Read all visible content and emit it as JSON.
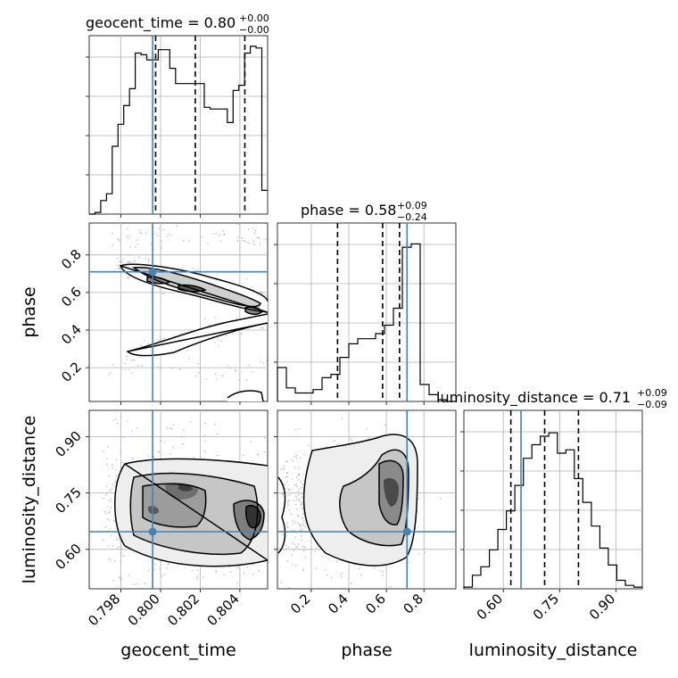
{
  "chart_data": {
    "type": "corner",
    "parameters": [
      {
        "name": "geocent_time",
        "label": "geocent_time",
        "range": [
          0.7964,
          0.8054
        ],
        "title_name": "geocent_time",
        "title_value": "0.80",
        "title_plus": "+0.00",
        "title_minus": "−0.00"
      },
      {
        "name": "phase",
        "label": "phase",
        "range": [
          0.02,
          0.97
        ],
        "title_name": "phase",
        "title_value": "0.58",
        "title_plus": "+0.09",
        "title_minus": "−0.24"
      },
      {
        "name": "luminosity_distance",
        "label": "luminosity_distance",
        "range": [
          0.495,
          0.97
        ],
        "title_name": "luminosity_distance",
        "title_value": "0.71",
        "title_plus": "+0.09",
        "title_minus": "−0.09"
      }
    ],
    "truths": [
      0.7996,
      0.71,
      0.647
    ],
    "tick_labels": {
      "geocent_time": [
        {
          "v": 0.798,
          "t": "0.798"
        },
        {
          "v": 0.8,
          "t": "0.800"
        },
        {
          "v": 0.802,
          "t": "0.802"
        },
        {
          "v": 0.804,
          "t": "0.804"
        }
      ],
      "phase": [
        {
          "v": 0.2,
          "t": "0.2"
        },
        {
          "v": 0.4,
          "t": "0.4"
        },
        {
          "v": 0.6,
          "t": "0.6"
        },
        {
          "v": 0.8,
          "t": "0.8"
        }
      ],
      "luminosity_distance": [
        {
          "v": 0.6,
          "t": "0.60"
        },
        {
          "v": 0.75,
          "t": "0.75"
        },
        {
          "v": 0.9,
          "t": "0.90"
        }
      ]
    },
    "histograms": [
      {
        "param": "geocent_time",
        "density": [
          0,
          0.01,
          0.08,
          0.12,
          0.4,
          0.53,
          0.64,
          0.74,
          0.95,
          0.94,
          0.91,
          0.91,
          0.97,
          0.97,
          0.86,
          0.77,
          0.77,
          0.77,
          0.77,
          0.77,
          0.63,
          0.62,
          0.62,
          0.62,
          0.54,
          0.73,
          0.76,
          0.95,
          0.99,
          0.98,
          0.14
        ],
        "quantiles": [
          0.79975,
          0.80175,
          0.80425
        ]
      },
      {
        "param": "phase",
        "density": [
          0.2,
          0.08,
          0.05,
          0.05,
          0.07,
          0.14,
          0.16,
          0.26,
          0.34,
          0.37,
          0.37,
          0.4,
          0.45,
          0.55,
          0.91,
          0.93,
          0.1,
          0.04,
          0.01,
          0.0
        ],
        "quantiles": [
          0.34,
          0.58,
          0.67
        ]
      },
      {
        "param": "luminosity_distance",
        "density": [
          0.01,
          0.08,
          0.13,
          0.23,
          0.35,
          0.46,
          0.61,
          0.77,
          0.85,
          0.9,
          0.92,
          0.8,
          0.82,
          0.65,
          0.51,
          0.37,
          0.24,
          0.14,
          0.05,
          0.02,
          0.01
        ],
        "quantiles": [
          0.62,
          0.71,
          0.8
        ]
      }
    ],
    "contour_levels": 4,
    "grid": true
  }
}
